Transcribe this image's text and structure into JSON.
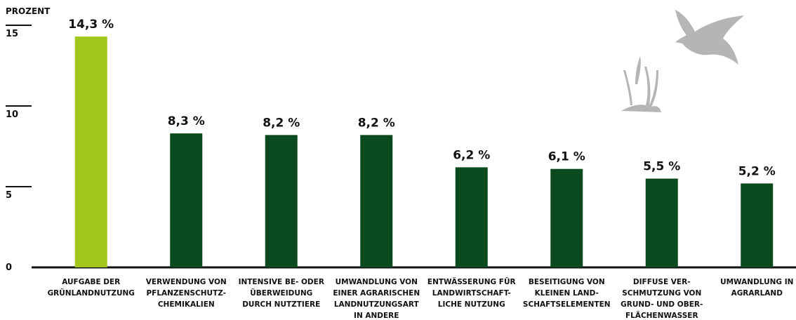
{
  "chart_data": {
    "type": "bar",
    "y_label": "PROZENT",
    "categories": [
      "AUFGABE DER\nGRÜNLANDNUTZUNG",
      "VERWENDUNG VON\nPFLANZENSCHUTZ-\nCHEMIKALIEN",
      "INTENSIVE BE- ODER\nÜBERWEIDUNG\nDURCH NUTZTIERE",
      "UMWANDLUNG VON\nEINER AGRARISCHEN\nLANDNUTZUNGSART\nIN ANDERE",
      "ENTWÄSSERUNG FÜR\nLANDWIRTSCHAFT-\nLICHE NUTZUNG",
      "BESEITIGUNG VON\nKLEINEN LAND-\nSCHAFTSELEMENTEN",
      "DIFFUSE VER-\nSCHMUTZUNG VON\nGRUND- UND OBER-\nFLÄCHENWASSER",
      "UMWANDLUNG IN\nAGRARLAND"
    ],
    "values": [
      14.3,
      8.3,
      8.2,
      8.2,
      6.2,
      6.1,
      5.5,
      5.2
    ],
    "value_labels": [
      "14,3 %",
      "8,3 %",
      "8,2 %",
      "8,2 %",
      "6,2 %",
      "6,1 %",
      "5,5 %",
      "5,2 %"
    ],
    "colors": [
      "#a3c61e",
      "#0b4a1e",
      "#0b4a1e",
      "#0b4a1e",
      "#0b4a1e",
      "#0b4a1e",
      "#0b4a1e",
      "#0b4a1e"
    ],
    "ylim": [
      0,
      15
    ],
    "yticks": [
      0,
      5,
      10,
      15
    ],
    "grid": false
  }
}
